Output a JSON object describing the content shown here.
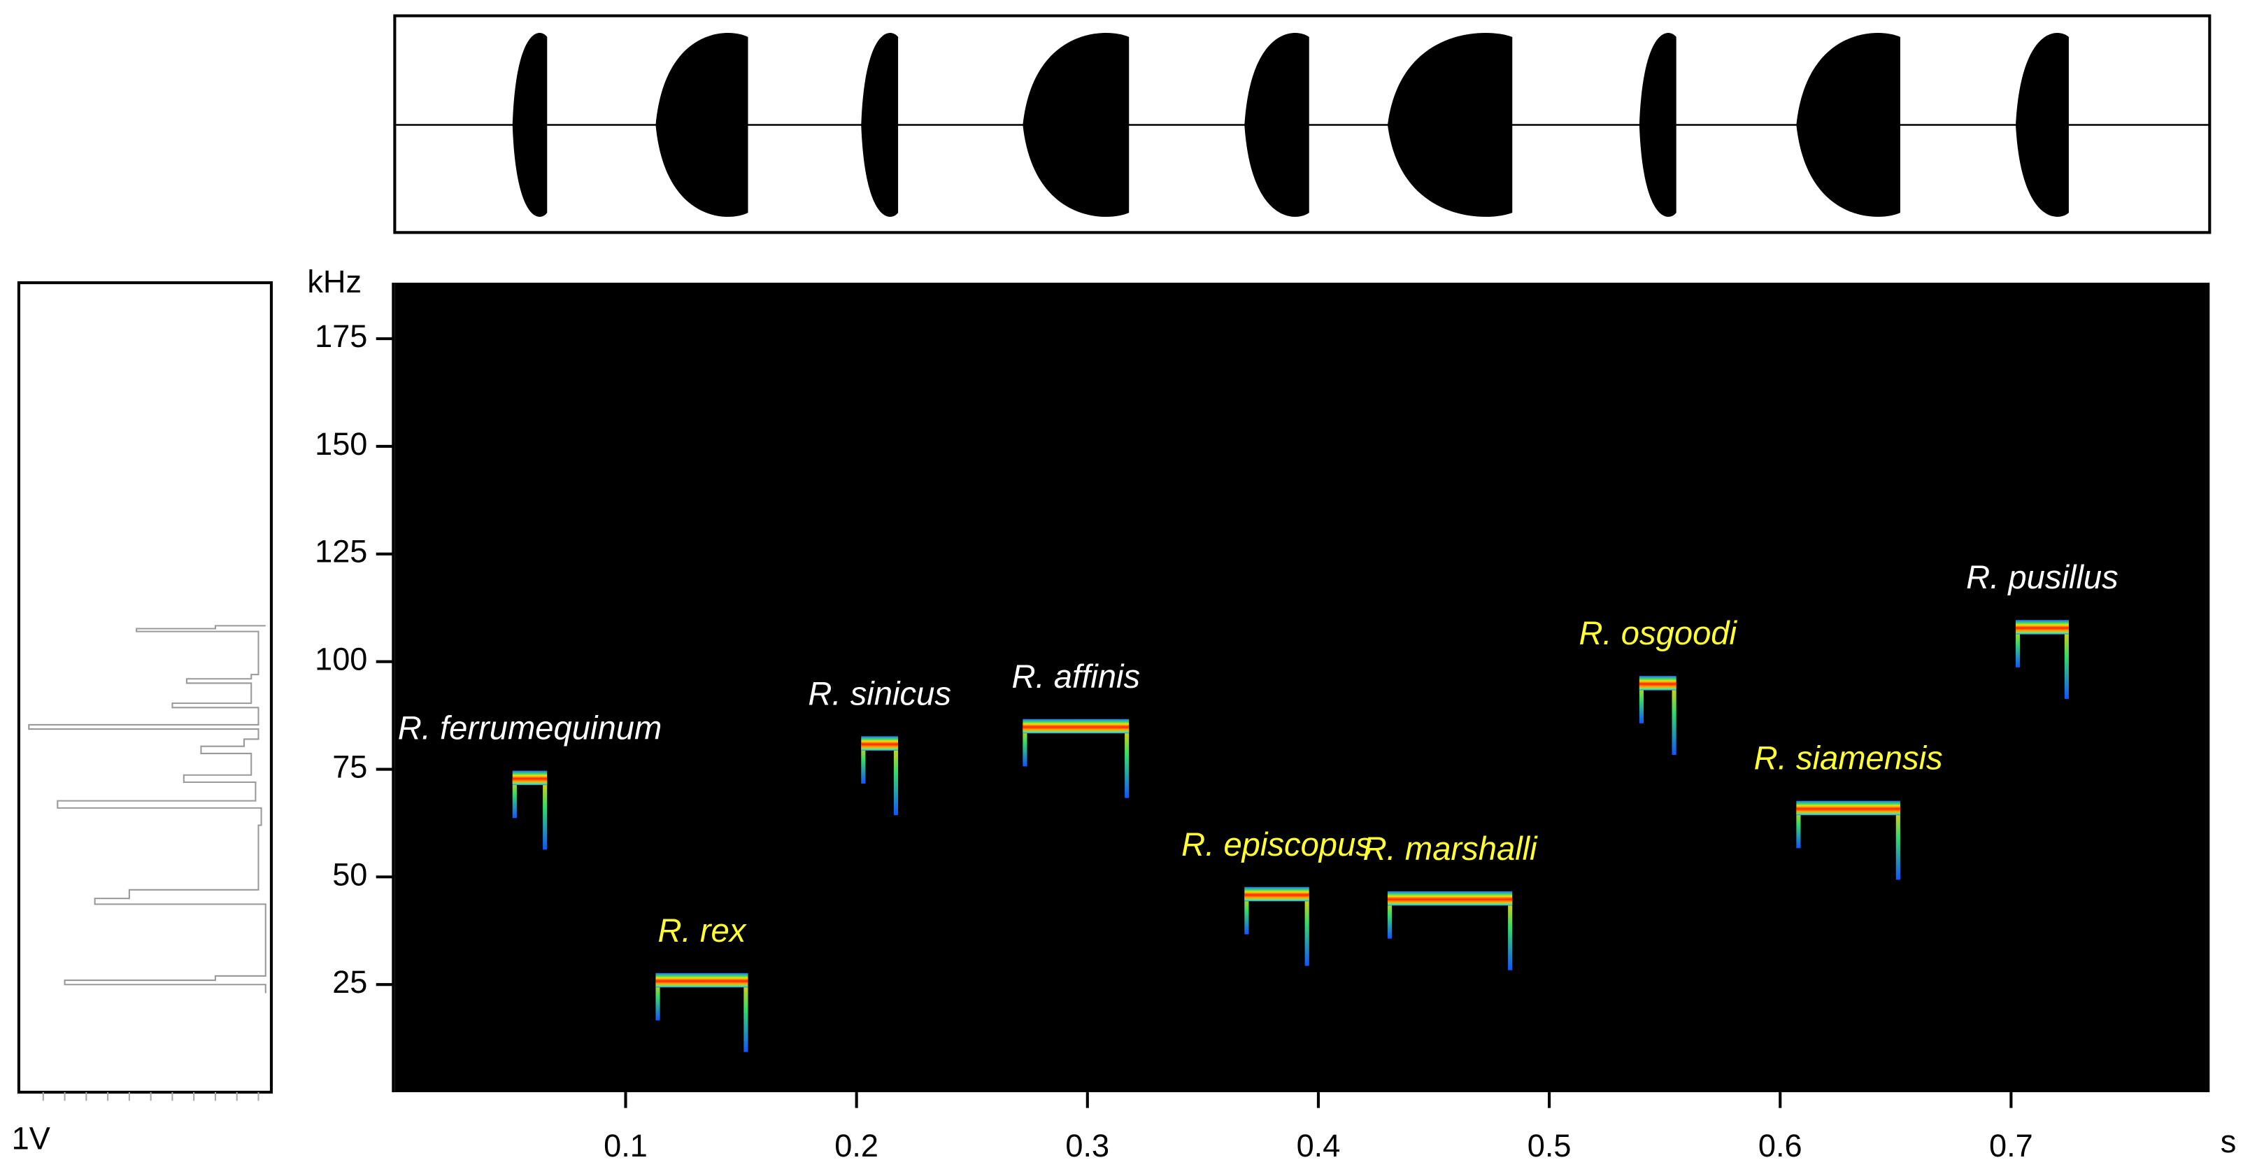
{
  "chart_data": {
    "type": "spectrogram",
    "x_label": "s",
    "y_label": "kHz",
    "amplitude_label": "1V",
    "xlim": [
      0,
      0.786
    ],
    "ylim": [
      0,
      188
    ],
    "xticks": [
      0.1,
      0.2,
      0.3,
      0.4,
      0.5,
      0.6,
      0.7
    ],
    "yticks": [
      25,
      50,
      75,
      100,
      125,
      150,
      175
    ],
    "calls": [
      {
        "name": "R. ferrumequinum",
        "start": 0.051,
        "end": 0.066,
        "freq": 73,
        "label_color": "#ffffff"
      },
      {
        "name": "R. rex",
        "start": 0.113,
        "end": 0.153,
        "freq": 26,
        "label_color": "#ffff33"
      },
      {
        "name": "R. sinicus",
        "start": 0.202,
        "end": 0.218,
        "freq": 81,
        "label_color": "#ffffff"
      },
      {
        "name": "R. affinis",
        "start": 0.272,
        "end": 0.318,
        "freq": 85,
        "label_color": "#ffffff"
      },
      {
        "name": "R. episcopus",
        "start": 0.368,
        "end": 0.396,
        "freq": 46,
        "label_color": "#ffff33"
      },
      {
        "name": "R. marshalli",
        "start": 0.43,
        "end": 0.484,
        "freq": 45,
        "label_color": "#ffff33"
      },
      {
        "name": "R. osgoodi",
        "start": 0.539,
        "end": 0.555,
        "freq": 95,
        "label_color": "#ffff33"
      },
      {
        "name": "R. siamensis",
        "start": 0.607,
        "end": 0.652,
        "freq": 66,
        "label_color": "#ffff33"
      },
      {
        "name": "R. pusillus",
        "start": 0.702,
        "end": 0.725,
        "freq": 108,
        "label_color": "#ffffff"
      }
    ]
  }
}
